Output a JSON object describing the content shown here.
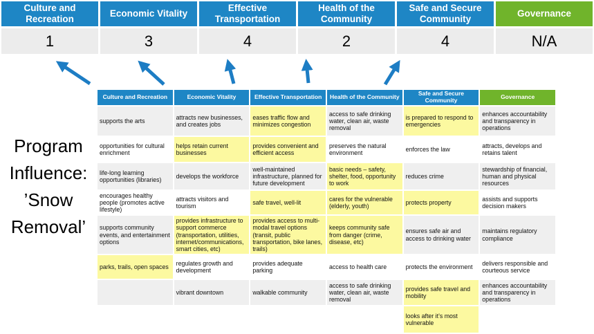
{
  "program_title": "Program Influence: ’Snow Removal’",
  "colors": {
    "blue": "#1e86c5",
    "green": "#70b42b",
    "score_bg": "#ececec",
    "band_gray": "#efefef",
    "highlight_yellow": "#fcf9a0",
    "arrow_blue": "#1d7dc4"
  },
  "summary": {
    "columns": [
      {
        "label": "Culture and Recreation",
        "score": "1",
        "header_color": "blue"
      },
      {
        "label": "Economic Vitality",
        "score": "3",
        "header_color": "blue"
      },
      {
        "label": "Effective Transportation",
        "score": "4",
        "header_color": "blue"
      },
      {
        "label": "Health of the Community",
        "score": "2",
        "header_color": "blue"
      },
      {
        "label": "Safe and Secure Community",
        "score": "4",
        "header_color": "blue"
      },
      {
        "label": "Governance",
        "score": "N/A",
        "header_color": "green"
      }
    ]
  },
  "matrix": {
    "headers": [
      {
        "label": "Culture and Recreation",
        "color": "blue"
      },
      {
        "label": "Economic Vitality",
        "color": "blue"
      },
      {
        "label": "Effective Transportation",
        "color": "blue"
      },
      {
        "label": "Health of the Community",
        "color": "blue"
      },
      {
        "label": "Safe and Secure Community",
        "color": "blue"
      },
      {
        "label": "Governance",
        "color": "green"
      }
    ],
    "rows": [
      [
        {
          "text": "supports the arts",
          "hl": false
        },
        {
          "text": "attracts new businesses, and creates jobs",
          "hl": false
        },
        {
          "text": "eases traffic flow and minimizes congestion",
          "hl": true
        },
        {
          "text": "access to safe drinking water, clean air, waste removal",
          "hl": false
        },
        {
          "text": "is prepared to respond to emergencies",
          "hl": true
        },
        {
          "text": "enhances accountability and transparency in operations",
          "hl": false
        }
      ],
      [
        {
          "text": "opportunities for cultural enrichment",
          "hl": false
        },
        {
          "text": "helps retain current businesses",
          "hl": true
        },
        {
          "text": "provides convenient and efficient access",
          "hl": true
        },
        {
          "text": "preserves the natural environment",
          "hl": false
        },
        {
          "text": "enforces the law",
          "hl": false
        },
        {
          "text": "attracts, develops and retains talent",
          "hl": false
        }
      ],
      [
        {
          "text": "life-long learning opportunities (libraries)",
          "hl": false
        },
        {
          "text": "develops the workforce",
          "hl": false
        },
        {
          "text": "well-maintained infrastructure, planned for future development",
          "hl": false
        },
        {
          "text": "basic needs – safety, shelter, food, opportunity to work",
          "hl": true
        },
        {
          "text": "reduces crime",
          "hl": false
        },
        {
          "text": "stewardship of financial, human and physical resources",
          "hl": false
        }
      ],
      [
        {
          "text": "encourages healthy people (promotes active lifestyle)",
          "hl": false
        },
        {
          "text": "attracts visitors and tourism",
          "hl": false
        },
        {
          "text": "safe travel, well-lit",
          "hl": true
        },
        {
          "text": "cares for the vulnerable (elderly, youth)",
          "hl": true
        },
        {
          "text": "protects property",
          "hl": true
        },
        {
          "text": "assists and supports decision makers",
          "hl": false
        }
      ],
      [
        {
          "text": "supports community events, and entertainment options",
          "hl": false
        },
        {
          "text": "provides infrastructure to support commerce (transportation, utilities, internet/communications, smart cities, etc)",
          "hl": true
        },
        {
          "text": "provides access to multi-modal travel options (transit, public transportation, bike lanes, trails)",
          "hl": true
        },
        {
          "text": "keeps community safe from danger (crime, disease, etc)",
          "hl": true
        },
        {
          "text": "ensures safe air and access to drinking water",
          "hl": false
        },
        {
          "text": "maintains regulatory compliance",
          "hl": false
        }
      ],
      [
        {
          "text": "parks, trails, open spaces",
          "hl": true
        },
        {
          "text": "regulates growth and development",
          "hl": false
        },
        {
          "text": "provides adequate parking",
          "hl": false
        },
        {
          "text": "access to health care",
          "hl": false
        },
        {
          "text": "protects the environment",
          "hl": false
        },
        {
          "text": "delivers responsible and courteous service",
          "hl": false
        }
      ],
      [
        {
          "text": "",
          "hl": false
        },
        {
          "text": "vibrant downtown",
          "hl": false
        },
        {
          "text": "walkable community",
          "hl": false
        },
        {
          "text": "access to safe drinking water, clean air, waste removal",
          "hl": false
        },
        {
          "text": "provides safe travel and mobility",
          "hl": true
        },
        {
          "text": "enhances accountability and transparency in operations",
          "hl": false
        }
      ],
      [
        {
          "text": "",
          "hl": false
        },
        {
          "text": "",
          "hl": false
        },
        {
          "text": "",
          "hl": false
        },
        {
          "text": "",
          "hl": false
        },
        {
          "text": "looks after it’s most vulnerable",
          "hl": true
        },
        {
          "text": "",
          "hl": false
        }
      ]
    ]
  }
}
